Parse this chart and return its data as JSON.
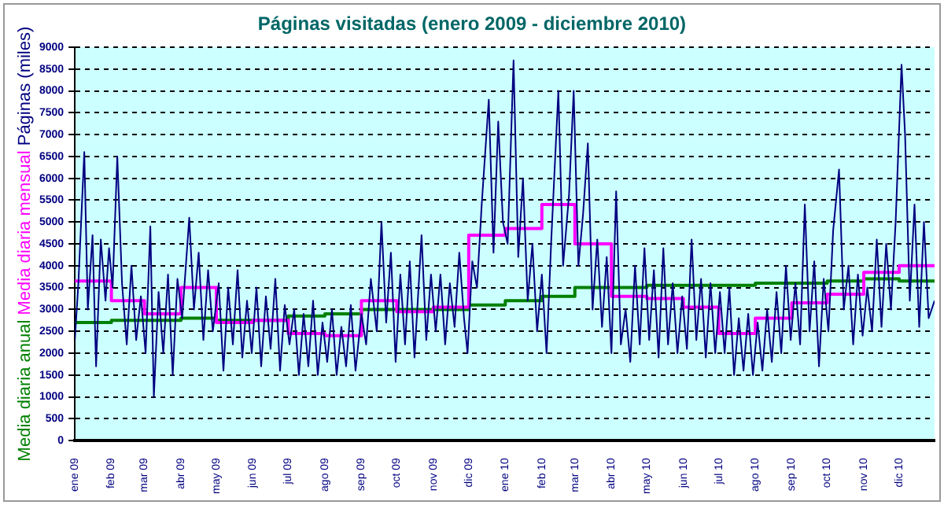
{
  "chart_data": {
    "type": "line",
    "title": "Páginas visitadas (enero 2009 - diciembre 2010)",
    "ylabel": "Páginas (miles)",
    "xlim": [
      "2009-01-01",
      "2010-12-31"
    ],
    "xticks": [
      {
        "value": "2009-01-01",
        "label": "ene 09"
      },
      {
        "value": "2009-02-01",
        "label": "feb 09"
      },
      {
        "value": "2009-03-01",
        "label": "mar 09"
      },
      {
        "value": "2009-04-01",
        "label": "abr 09"
      },
      {
        "value": "2009-05-01",
        "label": "may 09"
      },
      {
        "value": "2009-06-01",
        "label": "jun 09"
      },
      {
        "value": "2009-07-01",
        "label": "jul 09"
      },
      {
        "value": "2009-08-01",
        "label": "ago 09"
      },
      {
        "value": "2009-09-01",
        "label": "sep 09"
      },
      {
        "value": "2009-10-01",
        "label": "oct 09"
      },
      {
        "value": "2009-11-01",
        "label": "nov 09"
      },
      {
        "value": "2009-12-01",
        "label": "dic 09"
      },
      {
        "value": "2010-01-01",
        "label": "ene 10"
      },
      {
        "value": "2010-02-01",
        "label": "feb 10"
      },
      {
        "value": "2010-03-01",
        "label": "mar 10"
      },
      {
        "value": "2010-04-01",
        "label": "abr 10"
      },
      {
        "value": "2010-05-01",
        "label": "may 10"
      },
      {
        "value": "2010-06-01",
        "label": "jun 10"
      },
      {
        "value": "2010-07-01",
        "label": "jul 10"
      },
      {
        "value": "2010-08-01",
        "label": "ago 10"
      },
      {
        "value": "2010-09-01",
        "label": "sep 10"
      },
      {
        "value": "2010-10-01",
        "label": "oct 10"
      },
      {
        "value": "2010-11-01",
        "label": "nov 10"
      },
      {
        "value": "2010-12-01",
        "label": "dic 10"
      }
    ],
    "ylim": [
      0,
      9000
    ],
    "yticks": [
      0,
      500,
      1000,
      1500,
      2000,
      2500,
      3000,
      3500,
      4000,
      4500,
      5000,
      5500,
      6000,
      6500,
      7000,
      7500,
      8000,
      8500,
      9000
    ],
    "grid": "y",
    "legend": "left",
    "marker": "none",
    "series": [
      {
        "type": "line",
        "color": "#000080",
        "x": [
          "2009-01-01",
          "2009-01-04",
          "2009-01-09",
          "2009-01-12",
          "2009-01-16",
          "2009-01-19",
          "2009-01-23",
          "2009-01-27",
          "2009-01-30",
          "2009-02-02",
          "2009-02-06",
          "2009-02-10",
          "2009-02-14",
          "2009-02-18",
          "2009-02-22",
          "2009-02-26",
          "2009-03-02",
          "2009-03-06",
          "2009-03-09",
          "2009-03-13",
          "2009-03-17",
          "2009-03-21",
          "2009-03-25",
          "2009-03-29",
          "2009-04-02",
          "2009-04-08",
          "2009-04-12",
          "2009-04-16",
          "2009-04-20",
          "2009-04-24",
          "2009-04-28",
          "2009-05-03",
          "2009-05-07",
          "2009-05-11",
          "2009-05-15",
          "2009-05-19",
          "2009-05-23",
          "2009-05-27",
          "2009-05-31",
          "2009-06-04",
          "2009-06-08",
          "2009-06-12",
          "2009-06-16",
          "2009-06-20",
          "2009-06-24",
          "2009-06-28",
          "2009-07-02",
          "2009-07-06",
          "2009-07-10",
          "2009-07-14",
          "2009-07-18",
          "2009-07-22",
          "2009-07-26",
          "2009-07-30",
          "2009-08-03",
          "2009-08-07",
          "2009-08-11",
          "2009-08-15",
          "2009-08-19",
          "2009-08-23",
          "2009-08-27",
          "2009-09-01",
          "2009-09-05",
          "2009-09-09",
          "2009-09-14",
          "2009-09-18",
          "2009-09-22",
          "2009-09-26",
          "2009-09-30",
          "2009-10-04",
          "2009-10-08",
          "2009-10-12",
          "2009-10-16",
          "2009-10-22",
          "2009-10-26",
          "2009-10-30",
          "2009-11-03",
          "2009-11-07",
          "2009-11-11",
          "2009-11-15",
          "2009-11-19",
          "2009-11-23",
          "2009-11-27",
          "2009-11-30",
          "2009-12-04",
          "2009-12-08",
          "2009-12-12",
          "2009-12-18",
          "2009-12-22",
          "2009-12-26",
          "2009-12-30",
          "2010-01-03",
          "2010-01-08",
          "2010-01-12",
          "2010-01-16",
          "2010-01-20",
          "2010-01-24",
          "2010-01-28",
          "2010-02-01",
          "2010-02-05",
          "2010-02-09",
          "2010-02-15",
          "2010-02-19",
          "2010-02-24",
          "2010-02-28",
          "2010-03-04",
          "2010-03-08",
          "2010-03-12",
          "2010-03-16",
          "2010-03-20",
          "2010-03-24",
          "2010-03-28",
          "2010-04-01",
          "2010-04-05",
          "2010-04-09",
          "2010-04-13",
          "2010-04-17",
          "2010-04-21",
          "2010-04-25",
          "2010-04-29",
          "2010-05-03",
          "2010-05-07",
          "2010-05-11",
          "2010-05-15",
          "2010-05-19",
          "2010-05-23",
          "2010-05-27",
          "2010-05-31",
          "2010-06-04",
          "2010-06-08",
          "2010-06-12",
          "2010-06-16",
          "2010-06-20",
          "2010-06-24",
          "2010-06-28",
          "2010-07-02",
          "2010-07-06",
          "2010-07-10",
          "2010-07-14",
          "2010-07-18",
          "2010-07-22",
          "2010-07-26",
          "2010-07-30",
          "2010-08-03",
          "2010-08-07",
          "2010-08-11",
          "2010-08-15",
          "2010-08-19",
          "2010-08-23",
          "2010-08-27",
          "2010-08-31",
          "2010-09-04",
          "2010-09-08",
          "2010-09-12",
          "2010-09-16",
          "2010-09-20",
          "2010-09-24",
          "2010-09-28",
          "2010-10-02",
          "2010-10-06",
          "2010-10-11",
          "2010-10-15",
          "2010-10-19",
          "2010-10-23",
          "2010-10-27",
          "2010-10-31",
          "2010-11-04",
          "2010-11-08",
          "2010-11-12",
          "2010-11-16",
          "2010-11-20",
          "2010-11-24",
          "2010-11-28",
          "2010-12-03",
          "2010-12-06",
          "2010-12-10",
          "2010-12-14",
          "2010-12-18",
          "2010-12-22",
          "2010-12-26",
          "2010-12-31"
        ],
        "values": [
          2300,
          3600,
          6600,
          3000,
          4700,
          1700,
          4600,
          3200,
          4400,
          3500,
          6500,
          3600,
          2200,
          4000,
          2300,
          3300,
          2000,
          4900,
          1000,
          3400,
          2000,
          3800,
          1500,
          3700,
          2800,
          5100,
          3000,
          4300,
          2300,
          3900,
          2500,
          3600,
          1600,
          3500,
          2200,
          3900,
          1900,
          3200,
          2000,
          3500,
          1700,
          3300,
          2100,
          3700,
          1600,
          3100,
          2200,
          3000,
          1500,
          2900,
          1700,
          3200,
          1500,
          2700,
          1800,
          3000,
          1500,
          2600,
          1700,
          3100,
          1600,
          2900,
          2200,
          3700,
          2500,
          5000,
          2700,
          4300,
          1800,
          3800,
          2200,
          4100,
          1900,
          4700,
          2300,
          3800,
          2500,
          3800,
          2200,
          3600,
          2600,
          4300,
          2800,
          2000,
          4100,
          3500,
          5400,
          7800,
          4300,
          7300,
          5000,
          4500,
          8700,
          4200,
          6000,
          3200,
          4500,
          2500,
          3800,
          2000,
          4600,
          8000,
          4000,
          5600,
          8000,
          4000,
          5200,
          6800,
          3000,
          4600,
          2600,
          4200,
          2000,
          5700,
          2200,
          3000,
          1800,
          4000,
          2200,
          4400,
          2300,
          3900,
          1900,
          4400,
          2200,
          3600,
          2000,
          3300,
          2100,
          4600,
          2300,
          3700,
          1900,
          3600,
          2000,
          3400,
          2000,
          3500,
          1500,
          2800,
          1600,
          2900,
          1500,
          2700,
          1600,
          3000,
          1800,
          3400,
          2000,
          4000,
          2300,
          3600,
          2200,
          5400,
          2500,
          4100,
          1700,
          3700,
          2500,
          4800,
          6200,
          3000,
          4000,
          2200,
          3800,
          2400,
          3500,
          2500,
          4600,
          2600,
          4500,
          3000,
          5000,
          8600,
          7000,
          3200,
          5400,
          2600,
          5000,
          2800,
          3200
        ]
      },
      {
        "type": "step",
        "name": "Media diaria mensual",
        "color": "#ff00ff",
        "x": [
          "2009-01-01",
          "2009-02-01",
          "2009-03-01",
          "2009-04-01",
          "2009-05-01",
          "2009-06-01",
          "2009-07-01",
          "2009-08-01",
          "2009-09-01",
          "2009-10-01",
          "2009-11-01",
          "2009-12-01",
          "2010-01-01",
          "2010-02-01",
          "2010-03-01",
          "2010-04-01",
          "2010-05-01",
          "2010-06-01",
          "2010-07-01",
          "2010-08-01",
          "2010-09-01",
          "2010-10-01",
          "2010-11-01",
          "2010-12-01",
          "2010-12-31"
        ],
        "values": [
          3650,
          3200,
          2900,
          3500,
          2700,
          2750,
          2450,
          2400,
          3200,
          2950,
          3050,
          4700,
          4850,
          5400,
          4500,
          3300,
          3250,
          3050,
          2450,
          2800,
          3150,
          3350,
          3850,
          4000,
          4000
        ]
      },
      {
        "type": "step",
        "name": "Media diaria anual",
        "color": "#008000",
        "x": [
          "2009-01-01",
          "2009-02-01",
          "2009-03-01",
          "2009-04-01",
          "2009-05-01",
          "2009-06-01",
          "2009-07-01",
          "2009-08-01",
          "2009-09-01",
          "2009-10-01",
          "2009-11-01",
          "2009-12-01",
          "2010-01-01",
          "2010-02-01",
          "2010-03-01",
          "2010-04-01",
          "2010-05-01",
          "2010-06-01",
          "2010-07-01",
          "2010-08-01",
          "2010-09-01",
          "2010-10-01",
          "2010-11-01",
          "2010-12-01",
          "2010-12-31"
        ],
        "values": [
          2700,
          2750,
          2750,
          2800,
          2750,
          2750,
          2850,
          2900,
          3000,
          3000,
          3000,
          3100,
          3200,
          3300,
          3500,
          3500,
          3550,
          3550,
          3550,
          3600,
          3600,
          3650,
          3700,
          3650,
          3650
        ]
      }
    ]
  }
}
